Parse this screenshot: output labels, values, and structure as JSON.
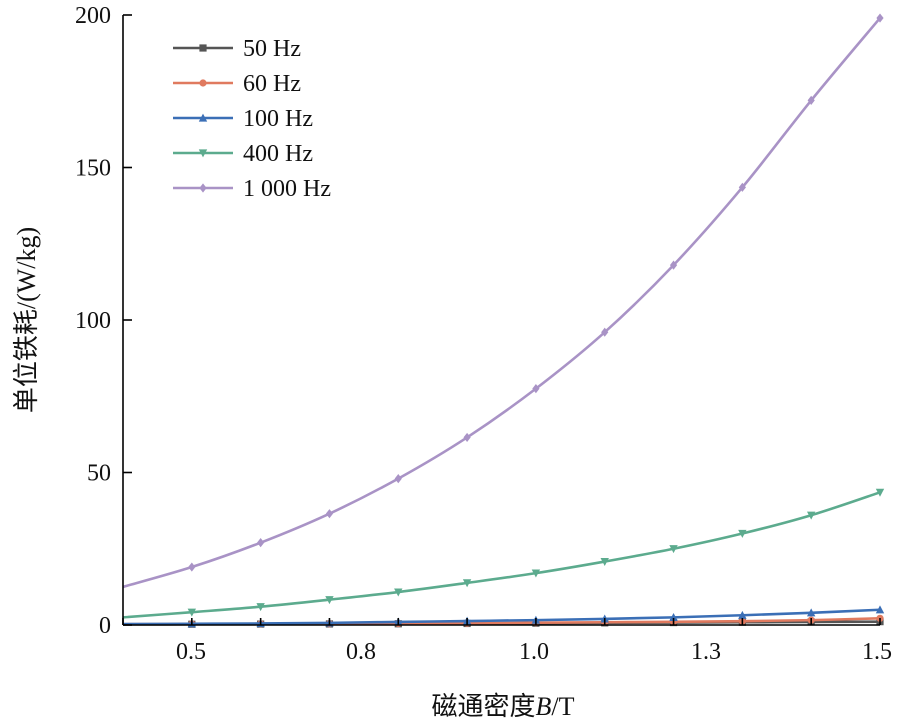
{
  "chart_data": {
    "type": "line",
    "title": "",
    "xlabel_main": "磁通密度",
    "xlabel_var": "B",
    "xlabel_unit": "/T",
    "ylabel": "单位铁耗/(W/kg)",
    "xlim": [
      0.4,
      1.5
    ],
    "ylim": [
      0,
      200
    ],
    "x_ticks": [
      0.5,
      0.8,
      1.0,
      1.3,
      1.5
    ],
    "x_tick_labels": [
      "0.5",
      "0.8",
      "1.0",
      "1.3",
      "1.5"
    ],
    "y_ticks": [
      0,
      50,
      100,
      150,
      200
    ],
    "y_tick_labels": [
      "0",
      "50",
      "100",
      "150",
      "200"
    ],
    "grid": false,
    "legend_position": "top-left",
    "x": [
      0.4,
      0.5,
      0.6,
      0.7,
      0.8,
      0.9,
      1.0,
      1.1,
      1.2,
      1.3,
      1.4,
      1.5
    ],
    "series": [
      {
        "name": "50 Hz",
        "color": "#555555",
        "marker": "square",
        "values": [
          0.2,
          0.25,
          0.3,
          0.35,
          0.4,
          0.5,
          0.6,
          0.7,
          0.8,
          0.9,
          1.0,
          1.1
        ]
      },
      {
        "name": "60 Hz",
        "color": "#e07a5f",
        "marker": "circle",
        "values": [
          0.25,
          0.3,
          0.35,
          0.42,
          0.5,
          0.6,
          0.75,
          0.9,
          1.05,
          1.25,
          1.6,
          2.2
        ]
      },
      {
        "name": "100 Hz",
        "color": "#3b6fb6",
        "marker": "triangle-up",
        "values": [
          0.3,
          0.4,
          0.5,
          0.7,
          1.0,
          1.3,
          1.6,
          2.0,
          2.5,
          3.2,
          4.0,
          5.0
        ]
      },
      {
        "name": "400 Hz",
        "color": "#5cab8e",
        "marker": "triangle-down",
        "values": [
          2.5,
          4.2,
          6.0,
          8.3,
          10.8,
          13.8,
          17.0,
          20.8,
          25.0,
          30.0,
          36.0,
          43.5
        ]
      },
      {
        "name": "1 000 Hz",
        "color": "#a993c6",
        "marker": "diamond",
        "values": [
          12.5,
          19.0,
          27.0,
          36.5,
          48.0,
          61.5,
          77.5,
          96.0,
          118.0,
          143.5,
          172.0,
          199.0
        ]
      }
    ]
  }
}
